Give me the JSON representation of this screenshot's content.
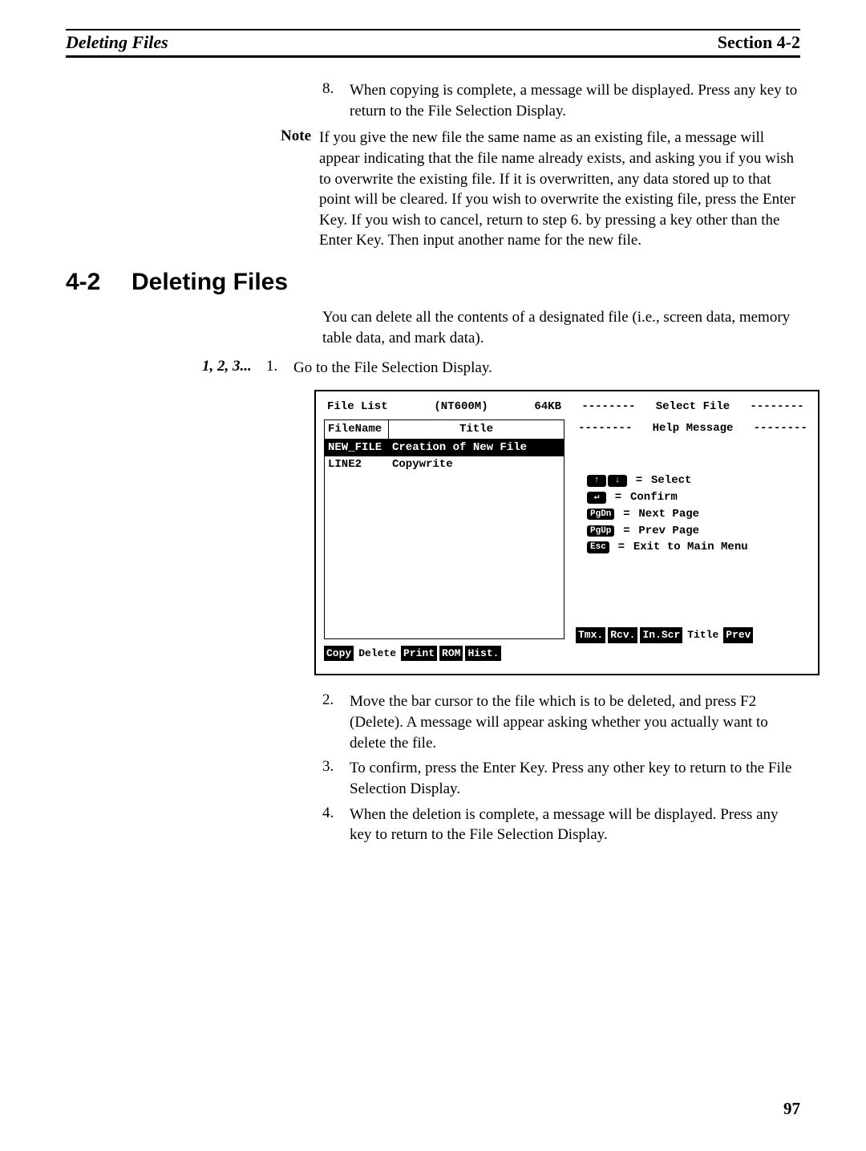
{
  "header": {
    "left": "Deleting Files",
    "right": "Section 4-2"
  },
  "step8": {
    "num": "8.",
    "text": "When copying is complete, a message will be displayed. Press any key to return to the File Selection Display."
  },
  "note": {
    "label": "Note",
    "text": "If you give the new file the same name as an existing file, a message will appear indicating that the file name already exists, and asking you if you wish to overwrite the existing file. If it is overwritten, any data stored up to that point will be cleared. If you wish to overwrite the existing file, press the Enter Key. If you wish to cancel, return to step 6. by pressing a key other than the Enter Key. Then input another name for the new file."
  },
  "section": {
    "num": "4-2",
    "title": "Deleting Files"
  },
  "intro": "You can delete all the contents of a designated file (i.e., screen data, memory table data, and mark data).",
  "steps_label": "1, 2, 3...",
  "step1": {
    "num": "1.",
    "text": "Go to the File Selection Display."
  },
  "step2": {
    "num": "2.",
    "text": "Move the bar cursor to the file which is to be deleted, and press F2 (Delete). A message will appear asking whether you actually want to delete the file."
  },
  "step3": {
    "num": "3.",
    "text": "To confirm, press the Enter Key. Press any other key to return to the File Selection Display."
  },
  "step4": {
    "num": "4.",
    "text": "When the deletion is complete, a message will be displayed. Press any key to return to the File Selection Display."
  },
  "terminal": {
    "file_list_label": "File List",
    "model": "(NT600M)",
    "size": "64KB",
    "col_filename": "FileName",
    "col_title": "Title",
    "rows": [
      {
        "name": "NEW_FILE",
        "title": "Creation of New File",
        "selected": true
      },
      {
        "name": "LINE2",
        "title": "Copywrite",
        "selected": false
      }
    ],
    "select_file_label": "Select File",
    "help_label": "Help Message",
    "help_rows": [
      {
        "keys": [
          "↑",
          "↓"
        ],
        "text": "Select"
      },
      {
        "keys": [
          "↵"
        ],
        "text": "Confirm"
      },
      {
        "keys": [
          "PgDn"
        ],
        "text": "Next Page"
      },
      {
        "keys": [
          "PgUp"
        ],
        "text": "Prev Page"
      },
      {
        "keys": [
          "Esc"
        ],
        "text": "Exit to Main Menu"
      }
    ],
    "left_buttons": [
      "Copy",
      "Delete",
      "Print",
      "ROM",
      "Hist."
    ],
    "left_buttons_off": [
      1
    ],
    "right_buttons": [
      "Tmx.",
      "Rcv.",
      "In.Scr",
      "Title",
      "Prev"
    ],
    "right_buttons_off": [
      3
    ],
    "dashes": "--------"
  },
  "page_number": "97"
}
